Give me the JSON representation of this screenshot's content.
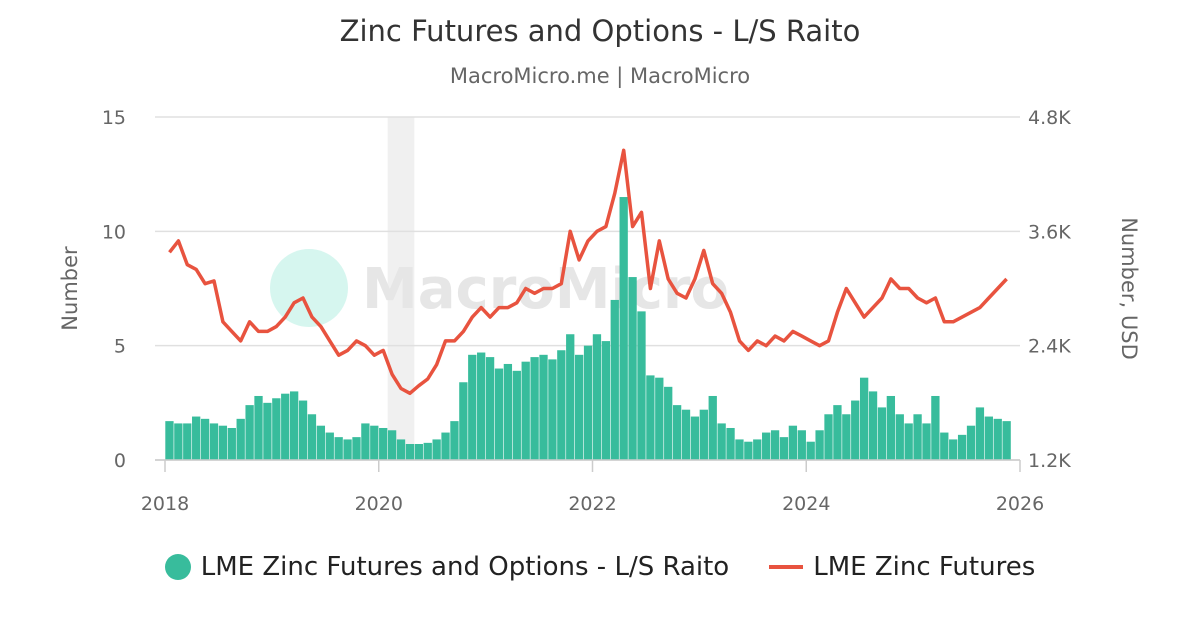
{
  "chart_data": {
    "type": "bar+line",
    "title": "Zinc Futures and Options - L/S Raito",
    "subtitle": "MacroMicro.me | MacroMicro",
    "watermark": "MacroMicro",
    "ylabel_left": "Number",
    "ylabel_right": "Number, USD",
    "ylim_left": [
      0,
      15
    ],
    "ylim_right": [
      1200,
      4800
    ],
    "yticks_left": [
      "0",
      "5",
      "10",
      "15"
    ],
    "yticks_right": [
      "1.2K",
      "2.4K",
      "3.6K",
      "4.8K"
    ],
    "xticks": [
      "2018",
      "2020",
      "2022",
      "2024",
      "2026"
    ],
    "xlim": [
      2018,
      2026
    ],
    "grid": true,
    "legend_position": "bottom",
    "shaded_periods": [
      [
        "2020-02",
        "2020-04"
      ]
    ],
    "start_month": "2018-01",
    "series": [
      {
        "name": "LME Zinc Futures and Options - L/S Raito",
        "type": "bar",
        "axis": "left",
        "color": "#38bc9c",
        "values": [
          1.7,
          1.6,
          1.6,
          1.9,
          1.8,
          1.6,
          1.5,
          1.4,
          1.8,
          2.4,
          2.8,
          2.5,
          2.7,
          2.9,
          3.0,
          2.6,
          2.0,
          1.5,
          1.2,
          1.0,
          0.9,
          1.0,
          1.6,
          1.5,
          1.4,
          1.3,
          0.9,
          0.7,
          0.7,
          0.75,
          0.9,
          1.2,
          1.7,
          3.4,
          4.6,
          4.7,
          4.5,
          4.0,
          4.2,
          3.9,
          4.3,
          4.5,
          4.6,
          4.4,
          4.8,
          5.5,
          4.6,
          5.0,
          5.5,
          5.2,
          7.0,
          11.5,
          8.0,
          6.5,
          3.7,
          3.6,
          3.2,
          2.4,
          2.2,
          1.9,
          2.2,
          2.8,
          1.6,
          1.4,
          0.9,
          0.8,
          0.9,
          1.2,
          1.3,
          1.0,
          1.5,
          1.3,
          0.8,
          1.3,
          2.0,
          2.4,
          2.0,
          2.6,
          3.6,
          3.0,
          2.3,
          2.8,
          2.0,
          1.6,
          2.0,
          1.6,
          2.8,
          1.2,
          0.9,
          1.1,
          1.5,
          2.3,
          1.9,
          1.8,
          1.7
        ]
      },
      {
        "name": "LME Zinc Futures",
        "type": "line",
        "axis": "right",
        "color": "#e8533f",
        "values": [
          3380,
          3500,
          3250,
          3200,
          3050,
          3080,
          2650,
          2550,
          2450,
          2650,
          2550,
          2550,
          2600,
          2700,
          2850,
          2900,
          2700,
          2600,
          2450,
          2300,
          2350,
          2450,
          2400,
          2300,
          2350,
          2100,
          1950,
          1900,
          1980,
          2050,
          2200,
          2450,
          2450,
          2550,
          2700,
          2800,
          2700,
          2800,
          2800,
          2850,
          3000,
          2950,
          3000,
          3000,
          3050,
          3600,
          3300,
          3500,
          3600,
          3650,
          4000,
          4450,
          3650,
          3800,
          3000,
          3500,
          3100,
          2950,
          2900,
          3100,
          3400,
          3050,
          2950,
          2750,
          2450,
          2350,
          2450,
          2400,
          2500,
          2450,
          2550,
          2500,
          2450,
          2400,
          2450,
          2750,
          3000,
          2850,
          2700,
          2800,
          2900,
          3100,
          3000,
          3000,
          2900,
          2850,
          2900,
          2650,
          2650,
          2700,
          2750,
          2800,
          2900,
          3000,
          3100
        ]
      }
    ]
  }
}
